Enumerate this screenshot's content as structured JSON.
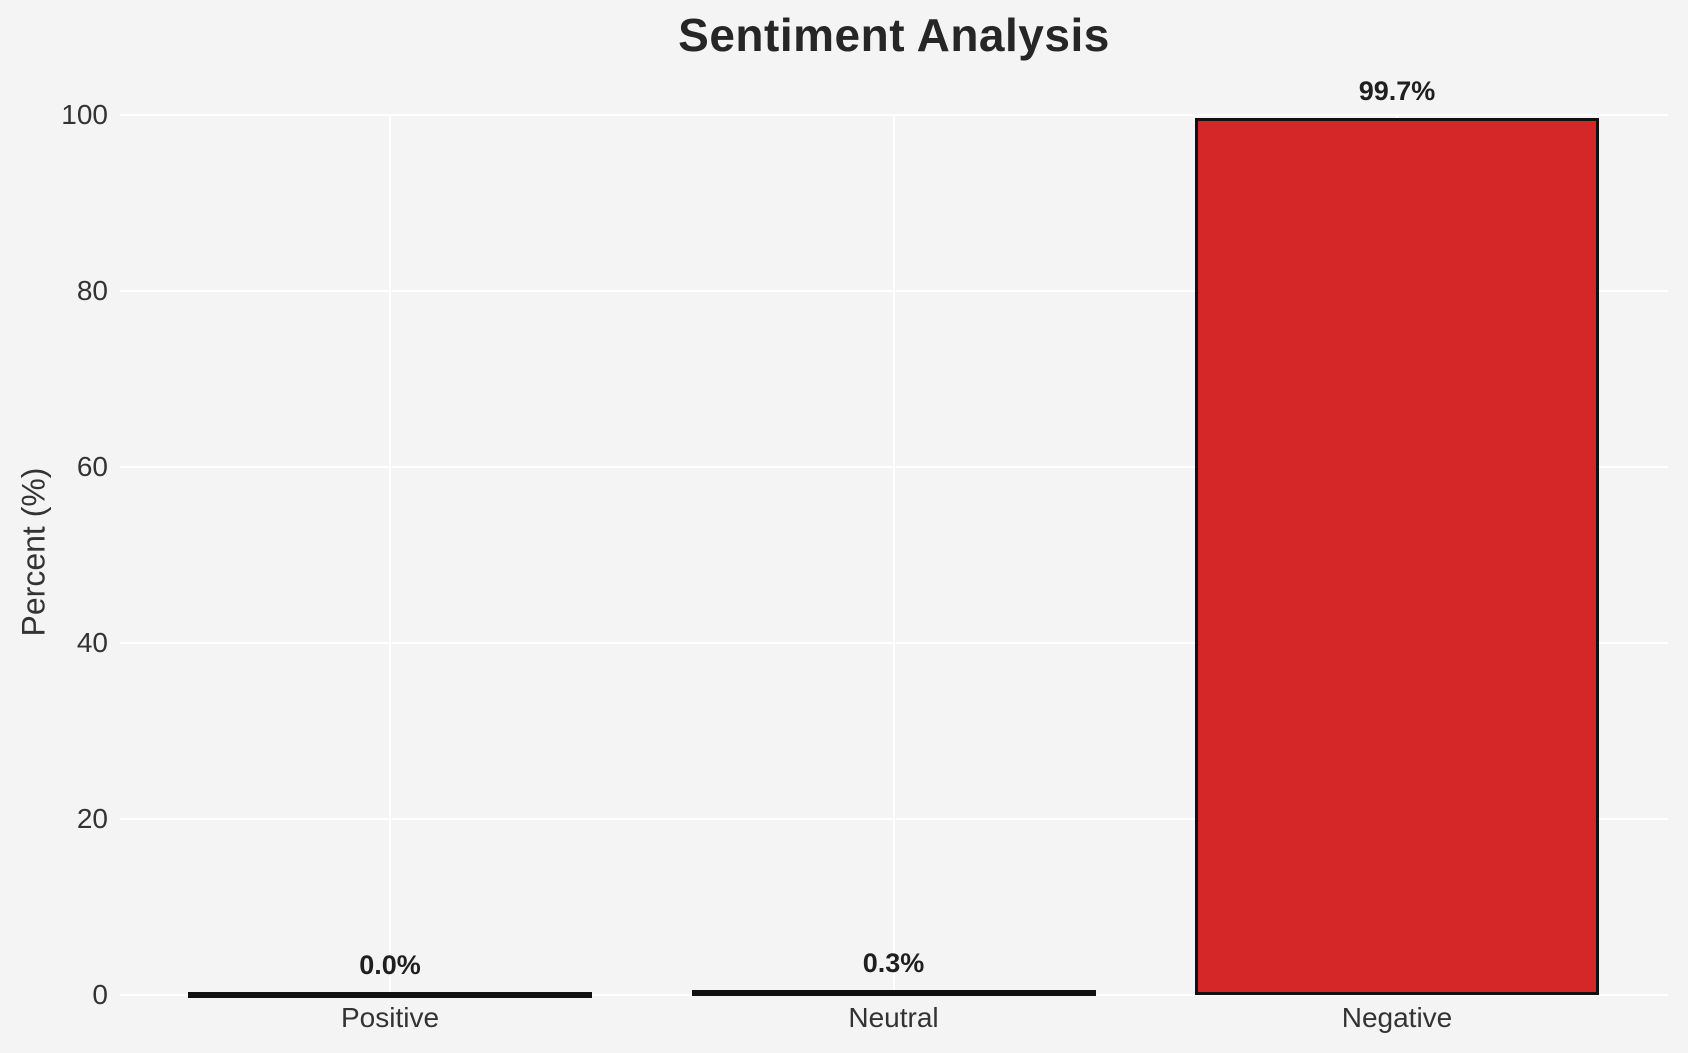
{
  "chart_data": {
    "type": "bar",
    "title": "Sentiment Analysis",
    "xlabel": "",
    "ylabel": "Percent (%)",
    "categories": [
      "Positive",
      "Neutral",
      "Negative"
    ],
    "values": [
      0.0,
      0.3,
      99.7
    ],
    "value_labels": [
      "0.0%",
      "0.3%",
      "99.7%"
    ],
    "yticks": [
      0,
      20,
      40,
      60,
      80,
      100
    ],
    "ylim": [
      0,
      100
    ],
    "grid": "on",
    "legend": "none",
    "colors": {
      "background": "#f4f4f5",
      "gridline": "#ffffff",
      "bar_fills": [
        "#111111",
        "#111111",
        "#d62728"
      ],
      "bar_edge": "#111111",
      "title_text": "#262626",
      "tick_text": "#333333",
      "value_label_text": "#1f1f1f"
    }
  }
}
